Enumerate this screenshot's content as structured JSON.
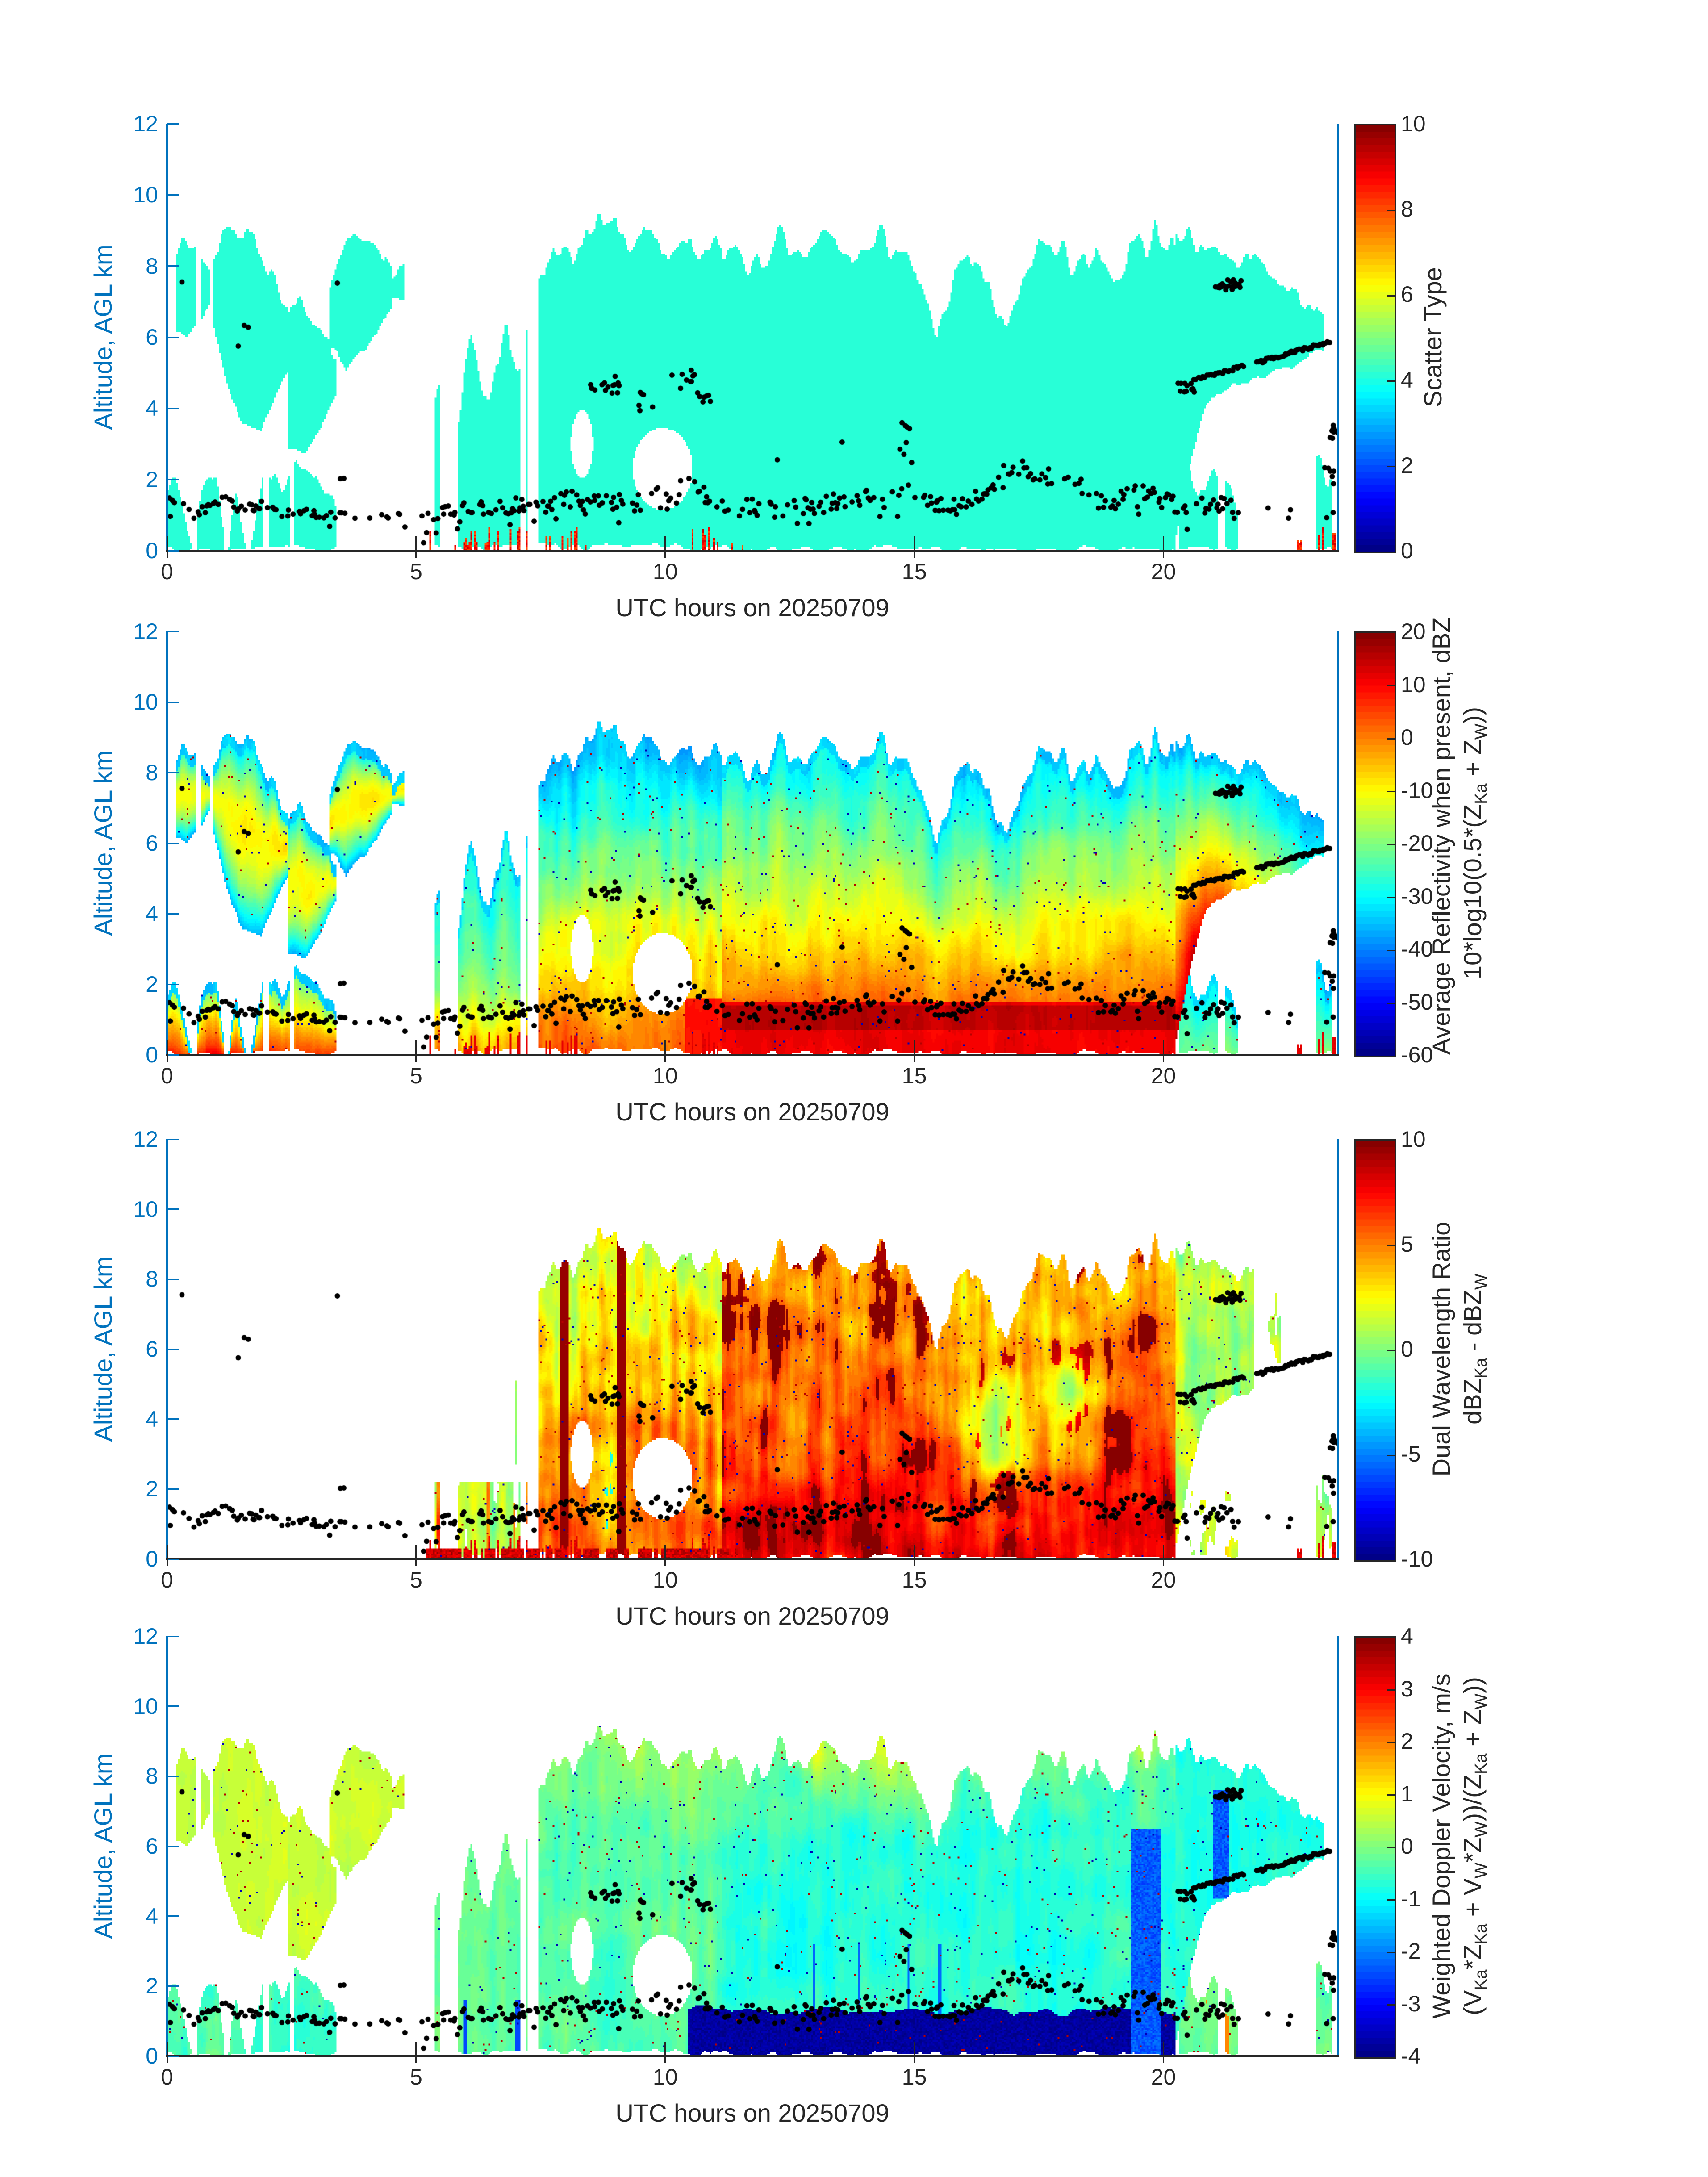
{
  "axes": {
    "xlabel": "UTC hours on 20250709",
    "ylabel": "Altitude, AGL km",
    "xticks": [
      0,
      5,
      10,
      15,
      20
    ],
    "yticks": [
      0,
      2,
      4,
      6,
      8,
      10,
      12
    ],
    "xlim": [
      0,
      23.5
    ],
    "ylim": [
      0,
      12
    ],
    "axis_color": "#0072BD",
    "text_color": "#262626"
  },
  "panels": [
    {
      "id": "scatter-type",
      "kind_map": "scatter",
      "colorbar": {
        "label_lines": [
          "Scatter Type"
        ],
        "ticks": [
          0,
          2,
          4,
          6,
          8,
          10
        ],
        "clim": [
          0,
          10
        ]
      }
    },
    {
      "id": "reflectivity",
      "kind_map": "reflect",
      "colorbar": {
        "label_lines": [
          "Average Reflectivity when present, dBZ",
          "10*log10(0.5*(Z_{Ka} + Z_{W}))"
        ],
        "ticks": [
          -60,
          -50,
          -40,
          -30,
          -20,
          -10,
          0,
          10,
          20
        ],
        "clim": [
          -60,
          20
        ]
      }
    },
    {
      "id": "dual-wavelength-ratio",
      "kind_map": "dwr",
      "colorbar": {
        "label_lines": [
          "Dual Wavelength Ratio",
          "dBZ_{Ka} - dBZ_{W}"
        ],
        "ticks": [
          -10,
          -5,
          0,
          5,
          10
        ],
        "clim": [
          -10,
          10
        ]
      }
    },
    {
      "id": "doppler-velocity",
      "kind_map": "velocity",
      "colorbar": {
        "label_lines": [
          "Weighted Doppler Velocity, m/s",
          "(V_{Ka}*Z_{Ka} + V_{W}*Z_{W}))/(Z_{Ka} + Z_{W}))"
        ],
        "ticks": [
          -4,
          -3,
          -2,
          -1,
          0,
          1,
          2,
          3,
          4
        ],
        "clim": [
          -4,
          4
        ]
      }
    }
  ],
  "chart_data": {
    "type": "heatmap",
    "x_unit": "UTC hours",
    "y_unit": "km AGL",
    "colormap": "jet",
    "regions": [
      {
        "id": "cirrus-a",
        "kind": "cirrus",
        "t0": 0.0,
        "t1": 0.85,
        "fill": 0.62,
        "base": [
          [
            0,
            6.3
          ],
          [
            0.4,
            5.9
          ],
          [
            0.85,
            6.8
          ]
        ],
        "top": [
          [
            0,
            8.1
          ],
          [
            0.3,
            8.6
          ],
          [
            0.6,
            8.4
          ],
          [
            0.85,
            7.6
          ]
        ]
      },
      {
        "id": "cirrus-b",
        "kind": "cirrus",
        "t0": 0.92,
        "t1": 2.45,
        "fill": 0.85,
        "base": [
          [
            0.92,
            6.4
          ],
          [
            1.2,
            4.6
          ],
          [
            1.5,
            3.6
          ],
          [
            1.9,
            3.4
          ],
          [
            2.2,
            4.4
          ],
          [
            2.45,
            5.0
          ]
        ],
        "top": [
          [
            0.92,
            8.3
          ],
          [
            1.15,
            8.9
          ],
          [
            1.6,
            8.9
          ],
          [
            1.95,
            8.3
          ],
          [
            2.2,
            7.4
          ],
          [
            2.45,
            6.9
          ]
        ]
      },
      {
        "id": "cirrus-c",
        "kind": "cirrus",
        "t0": 2.45,
        "t1": 3.4,
        "fill": 0.8,
        "base": [
          [
            2.45,
            2.9
          ],
          [
            2.8,
            2.8
          ],
          [
            3.1,
            3.5
          ],
          [
            3.4,
            4.4
          ]
        ],
        "top": [
          [
            2.45,
            6.6
          ],
          [
            2.75,
            6.9
          ],
          [
            3.1,
            6.1
          ],
          [
            3.4,
            5.6
          ]
        ]
      },
      {
        "id": "cirrus-d",
        "kind": "cirrus",
        "t0": 3.25,
        "t1": 4.5,
        "fill": 0.72,
        "base": [
          [
            3.25,
            5.8
          ],
          [
            3.6,
            5.1
          ],
          [
            4.0,
            5.7
          ],
          [
            4.5,
            6.9
          ]
        ],
        "top": [
          [
            3.25,
            7.2
          ],
          [
            3.65,
            8.9
          ],
          [
            4.05,
            8.5
          ],
          [
            4.5,
            7.7
          ]
        ]
      },
      {
        "id": "cirrus-e",
        "kind": "cirrus",
        "t0": 4.52,
        "t1": 4.78,
        "fill": 0.85,
        "base": [
          [
            4.52,
            7.1
          ],
          [
            4.78,
            7.1
          ]
        ],
        "top": [
          [
            4.52,
            7.9
          ],
          [
            4.78,
            7.9
          ]
        ]
      },
      {
        "id": "mid-streaks",
        "kind": "streak",
        "t0": 5.15,
        "t1": 7.45,
        "fill": 0.55,
        "base": [
          [
            5.15,
            0.08
          ],
          [
            7.45,
            0.08
          ]
        ],
        "top": [
          [
            5.15,
            3.2
          ],
          [
            5.45,
            4.9
          ],
          [
            5.8,
            3.1
          ],
          [
            6.1,
            5.8
          ],
          [
            6.45,
            4.2
          ],
          [
            6.8,
            6.6
          ],
          [
            7.1,
            5.2
          ],
          [
            7.45,
            7.0
          ]
        ]
      },
      {
        "id": "deep-a",
        "kind": "deep1",
        "t0": 7.45,
        "t1": 11.15,
        "fill": 0.9,
        "base": [
          [
            7.45,
            0.1
          ],
          [
            11.15,
            0.1
          ]
        ],
        "top": [
          [
            7.45,
            7.6
          ],
          [
            7.8,
            8.4
          ],
          [
            8.15,
            7.9
          ],
          [
            8.5,
            9.1
          ],
          [
            8.9,
            9.3
          ],
          [
            9.3,
            8.5
          ],
          [
            9.7,
            8.9
          ],
          [
            10.1,
            8.4
          ],
          [
            10.5,
            8.8
          ],
          [
            10.9,
            8.3
          ],
          [
            11.15,
            8.6
          ]
        ]
      },
      {
        "id": "deep-b",
        "kind": "deep2",
        "t0": 11.15,
        "t1": 20.25,
        "fill": 1.0,
        "base": [
          [
            11.15,
            0.05
          ],
          [
            20.25,
            0.05
          ]
        ],
        "top": [
          [
            11.15,
            8.6
          ],
          [
            11.8,
            7.9
          ],
          [
            12.3,
            8.9
          ],
          [
            12.8,
            8.4
          ],
          [
            13.3,
            9.0
          ],
          [
            13.8,
            8.5
          ],
          [
            14.35,
            8.9
          ],
          [
            14.8,
            8.1
          ],
          [
            15.15,
            7.8
          ],
          [
            15.45,
            5.9
          ],
          [
            15.8,
            7.8
          ],
          [
            16.2,
            8.3
          ],
          [
            16.55,
            7.2
          ],
          [
            16.9,
            6.4
          ],
          [
            17.3,
            8.1
          ],
          [
            17.75,
            8.6
          ],
          [
            18.1,
            8.1
          ],
          [
            18.55,
            8.5
          ],
          [
            19.0,
            7.3
          ],
          [
            19.45,
            8.6
          ],
          [
            19.85,
            8.8
          ],
          [
            20.25,
            8.5
          ]
        ]
      },
      {
        "id": "anvil",
        "kind": "anvil",
        "t0": 20.25,
        "t1": 23.2,
        "fill": 0.93,
        "base": [
          [
            20.25,
            0.4
          ],
          [
            20.5,
            2.2
          ],
          [
            20.85,
            4.1
          ],
          [
            21.3,
            4.6
          ],
          [
            22.0,
            4.9
          ],
          [
            22.6,
            5.2
          ],
          [
            23.2,
            5.7
          ]
        ],
        "top": [
          [
            20.25,
            8.8
          ],
          [
            20.8,
            8.7
          ],
          [
            21.3,
            8.4
          ],
          [
            21.9,
            8.1
          ],
          [
            22.35,
            7.5
          ],
          [
            22.75,
            7.1
          ],
          [
            23.2,
            6.5
          ]
        ]
      },
      {
        "id": "low-early",
        "kind": "lowearly",
        "t0": 0.0,
        "t1": 3.4,
        "fill": 0.7,
        "base": [
          [
            0,
            0.05
          ],
          [
            3.4,
            0.05
          ]
        ],
        "top": [
          [
            0,
            1.9
          ],
          [
            0.3,
            1.6
          ],
          [
            0.55,
            0.0
          ],
          [
            0.75,
            2.1
          ],
          [
            1.0,
            2.3
          ],
          [
            1.2,
            0.0
          ],
          [
            1.4,
            1.7
          ],
          [
            1.6,
            0.0
          ],
          [
            1.95,
            2.2
          ],
          [
            2.3,
            1.5
          ],
          [
            2.6,
            2.4
          ],
          [
            3.0,
            2.0
          ],
          [
            3.4,
            0.9
          ]
        ]
      },
      {
        "id": "low-late",
        "kind": "lowlate",
        "t0": 20.3,
        "t1": 21.5,
        "fill": 0.6,
        "base": [
          [
            20.3,
            0.05
          ],
          [
            21.5,
            0.05
          ]
        ],
        "top": [
          [
            20.3,
            2.7
          ],
          [
            20.7,
            1.8
          ],
          [
            21.0,
            2.3
          ],
          [
            21.5,
            1.3
          ]
        ]
      },
      {
        "id": "low-right",
        "kind": "lowlate",
        "t0": 22.85,
        "t1": 23.5,
        "fill": 0.55,
        "base": [
          [
            22.85,
            0.08
          ],
          [
            23.5,
            0.08
          ]
        ],
        "top": [
          [
            22.85,
            1.6
          ],
          [
            23.1,
            2.6
          ],
          [
            23.3,
            1.8
          ],
          [
            23.5,
            2.6
          ]
        ]
      }
    ],
    "holes": [
      {
        "t": 9.95,
        "z": 2.3,
        "rt": 0.6,
        "rz": 1.15
      },
      {
        "t": 8.33,
        "z": 3.0,
        "rt": 0.22,
        "rz": 0.95
      }
    ],
    "rain_columns": [
      {
        "t0": 5.2,
        "t1": 7.25
      },
      {
        "t0": 7.6,
        "t1": 8.45
      },
      {
        "t0": 10.5,
        "t1": 11.6
      },
      {
        "t0": 22.6,
        "t1": 23.45
      }
    ],
    "panel_values": {
      "scatter": {
        "flat": 4.1,
        "rain": 8.6
      },
      "reflect": {
        "cirrus": {
          "e": -36,
          "a": 26,
          "n": 12
        },
        "streak": {
          "e": -30,
          "a": 18,
          "n": 14,
          "lowboost": 9
        },
        "deep1": {
          "e": -35,
          "a": 38,
          "n": 16
        },
        "deep2": {
          "e": -32,
          "a": 40,
          "n": 14
        },
        "anvil": {
          "e": -35,
          "a": 48,
          "n": 12
        },
        "lowearly": {
          "e": -24,
          "a": 30,
          "n": 18
        },
        "lowlate": {
          "e": -33,
          "a": 12,
          "n": 10
        },
        "rain": 12
      },
      "dwr": {
        "streak": {
          "b": 1.2,
          "n": 7,
          "sparse": 0.42
        },
        "deep1": {
          "b": 2,
          "rel": 4,
          "n": 8,
          "redcol": 0.74,
          "red": 9.5,
          "cyan": 0.16,
          "cyanv": -2
        },
        "deep2": {
          "b": 4,
          "rel": 4,
          "n": 8,
          "pockets": [
            [
              16.6,
              3.5,
              0.55,
              1.7,
              -6
            ],
            [
              18.1,
              4.6,
              0.6,
              1.6,
              -4.5
            ]
          ]
        },
        "anvil": {
          "b": 1,
          "n": 8,
          "fadeafter": 21.8
        },
        "lowlate": {
          "b": 1,
          "n": 8,
          "sparse": 0.5
        },
        "bottomband": {
          "t0": 5.2,
          "t1": 11.6,
          "z": 0.3,
          "v": 7.5
        },
        "rain": 8
      },
      "velocity": {
        "cirrus": {
          "b": 0.55,
          "n": 0.9
        },
        "streak": {
          "b": -0.2,
          "n": 1.1,
          "lowcol": -2.4
        },
        "deep1": {
          "b": -0.3,
          "n": 1.2,
          "topboost": 0.5
        },
        "deep2": {
          "b": -0.7,
          "n": 1.3,
          "topboost": 0.8
        },
        "anvil": {
          "b": -0.75,
          "n": 1.0
        },
        "lowearly": {
          "b": -0.5,
          "n": 1.6
        },
        "lowlate": {
          "b": -0.2,
          "n": 1.4,
          "orange": [
            20.35,
            21.3,
            1.6,
            1.9
          ]
        },
        "navy": {
          "t0": 10.45,
          "t1": 20.25,
          "ztop": 1.3,
          "v": -3.75,
          "n": 0.4
        },
        "bluestreaks": [
          [
            19.35,
            19.95,
            0,
            6.5,
            -2.3
          ],
          [
            21.0,
            21.3,
            4.5,
            7.6,
            -2.3
          ]
        ]
      }
    },
    "overlay_dots": {
      "color": "#000000",
      "line": [
        [
          0,
          1.45
        ],
        [
          0.4,
          1.25
        ],
        [
          0.8,
          1.15
        ],
        [
          1.1,
          1.45
        ],
        [
          1.5,
          1.15
        ],
        [
          1.9,
          1.3
        ],
        [
          2.3,
          1.25
        ],
        [
          2.7,
          1.05
        ],
        [
          3.1,
          1.0
        ],
        [
          3.6,
          1.05
        ],
        [
          4.1,
          1.0
        ],
        [
          4.6,
          1.02
        ],
        [
          5.0,
          1.05
        ],
        [
          5.4,
          1.1
        ],
        [
          5.8,
          1.25
        ],
        [
          6.2,
          1.3
        ],
        [
          6.6,
          1.15
        ],
        [
          7.0,
          1.35
        ],
        [
          7.4,
          1.3
        ],
        [
          7.8,
          1.35
        ],
        [
          8.2,
          1.5
        ],
        [
          8.6,
          1.55
        ],
        [
          9.0,
          1.4
        ],
        [
          9.4,
          1.35
        ],
        [
          9.8,
          1.55
        ],
        [
          10.2,
          1.75
        ],
        [
          10.5,
          1.9
        ],
        [
          10.8,
          1.5
        ],
        [
          11.2,
          1.35
        ],
        [
          11.6,
          1.3
        ],
        [
          12.0,
          1.2
        ],
        [
          12.4,
          1.1
        ],
        [
          12.8,
          1.25
        ],
        [
          13.2,
          1.3
        ],
        [
          13.6,
          1.45
        ],
        [
          14.0,
          1.5
        ],
        [
          14.4,
          1.35
        ],
        [
          14.8,
          1.65
        ],
        [
          15.1,
          1.5
        ],
        [
          15.5,
          1.25
        ],
        [
          15.9,
          1.2
        ],
        [
          16.3,
          1.55
        ],
        [
          16.7,
          2.1
        ],
        [
          17.0,
          2.45
        ],
        [
          17.3,
          2.2
        ],
        [
          17.6,
          2.05
        ],
        [
          17.9,
          2.1
        ],
        [
          18.2,
          1.95
        ],
        [
          18.6,
          1.5
        ],
        [
          19.0,
          1.4
        ],
        [
          19.3,
          1.65
        ],
        [
          19.6,
          1.6
        ],
        [
          19.9,
          1.45
        ],
        [
          20.2,
          1.3
        ],
        [
          20.6,
          1.25
        ],
        [
          21.0,
          1.3
        ],
        [
          21.4,
          1.15
        ],
        [
          21.6,
          1.1
        ]
      ],
      "clusters": [
        [
          8.45,
          9.15,
          4.3,
          5.05,
          14
        ],
        [
          9.42,
          9.75,
          3.9,
          4.45,
          6
        ],
        [
          10.0,
          10.6,
          4.55,
          5.1,
          9
        ],
        [
          10.62,
          10.95,
          4.15,
          4.6,
          7
        ],
        [
          14.68,
          14.98,
          2.4,
          3.6,
          8
        ],
        [
          20.28,
          20.62,
          4.25,
          4.78,
          12
        ],
        [
          21.02,
          21.64,
          7.32,
          7.62,
          24
        ],
        [
          23.3,
          23.5,
          3.05,
          3.52,
          9
        ],
        [
          23.15,
          23.45,
          1.85,
          2.35,
          6
        ]
      ],
      "rising": [
        [
          20.62,
          4.82,
          21.62,
          5.18,
          26
        ],
        [
          21.88,
          5.28,
          23.35,
          5.88,
          46
        ]
      ],
      "singles": [
        [
          0.3,
          7.55
        ],
        [
          1.43,
          5.75
        ],
        [
          1.55,
          6.33
        ],
        [
          1.63,
          6.28
        ],
        [
          3.42,
          7.52
        ],
        [
          3.48,
          2.02
        ],
        [
          3.55,
          2.03
        ],
        [
          5.15,
          0.22
        ],
        [
          12.25,
          2.55
        ],
        [
          13.55,
          3.05
        ],
        [
          22.1,
          1.2
        ],
        [
          22.55,
          1.15
        ]
      ]
    }
  }
}
